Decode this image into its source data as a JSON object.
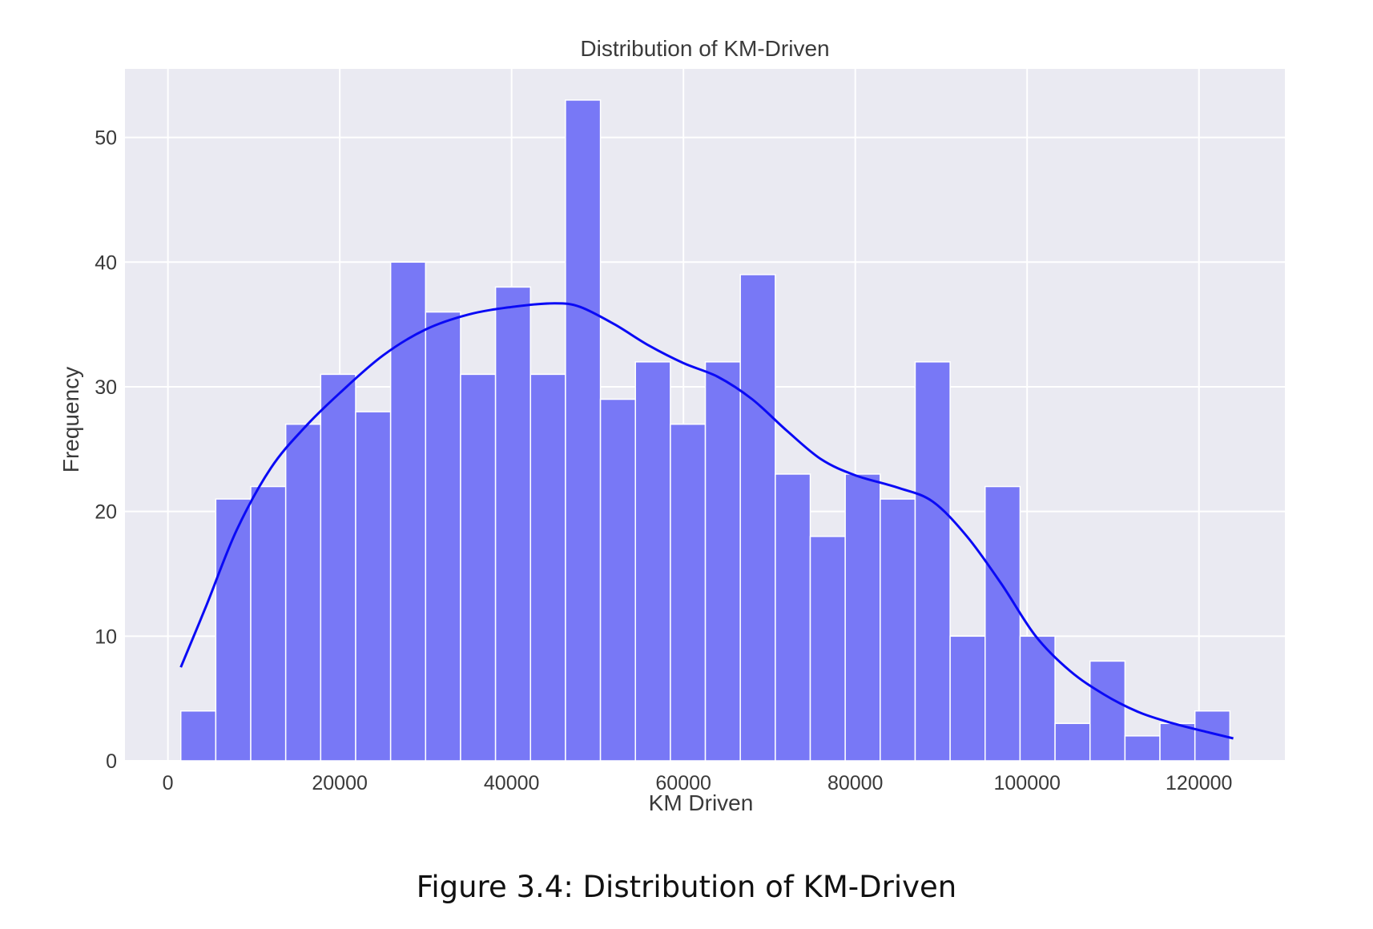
{
  "chart_data": {
    "type": "bar",
    "title": "Distribution of KM-Driven",
    "xlabel": "KM Driven",
    "ylabel": "Frequency",
    "xlim": [
      -5000,
      130000
    ],
    "ylim": [
      0,
      55.5
    ],
    "xticks": [
      0,
      20000,
      40000,
      60000,
      80000,
      100000,
      120000
    ],
    "xtick_labels": [
      "0",
      "20000",
      "40000",
      "60000",
      "80000",
      "100000",
      "120000"
    ],
    "yticks": [
      0,
      10,
      20,
      30,
      40,
      50
    ],
    "ytick_labels": [
      "0",
      "10",
      "20",
      "30",
      "40",
      "50"
    ],
    "grid": true,
    "bin_start": 1500,
    "bin_width": 4070,
    "counts": [
      4,
      21,
      22,
      27,
      31,
      28,
      40,
      36,
      31,
      38,
      31,
      53,
      29,
      32,
      27,
      32,
      39,
      23,
      18,
      23,
      21,
      32,
      10,
      22,
      10,
      3,
      8,
      2,
      3,
      4
    ],
    "kde": {
      "x": [
        1500,
        4500,
        8000,
        12000,
        16000,
        20000,
        25000,
        30000,
        35000,
        40000,
        45000,
        48000,
        52000,
        56000,
        60000,
        64000,
        68000,
        72000,
        76000,
        80000,
        85000,
        89000,
        93000,
        97000,
        101000,
        105000,
        109000,
        113000,
        117000,
        121000,
        124000
      ],
      "y": [
        7.5,
        12.5,
        18.5,
        23.5,
        26.8,
        29.5,
        32.5,
        34.6,
        35.8,
        36.4,
        36.7,
        36.4,
        35.0,
        33.3,
        31.9,
        30.8,
        29.0,
        26.5,
        24.2,
        22.9,
        21.9,
        20.8,
        18.0,
        14.2,
        10.0,
        7.2,
        5.3,
        3.9,
        3.0,
        2.3,
        1.8
      ]
    },
    "colors": {
      "bar_fill": "#7878f6",
      "bar_edge": "#ffffff",
      "kde_line": "#0a0af5",
      "plot_bg": "#eaeaf2",
      "grid": "#ffffff"
    }
  },
  "caption": "Figure 3.4: Distribution of KM-Driven"
}
